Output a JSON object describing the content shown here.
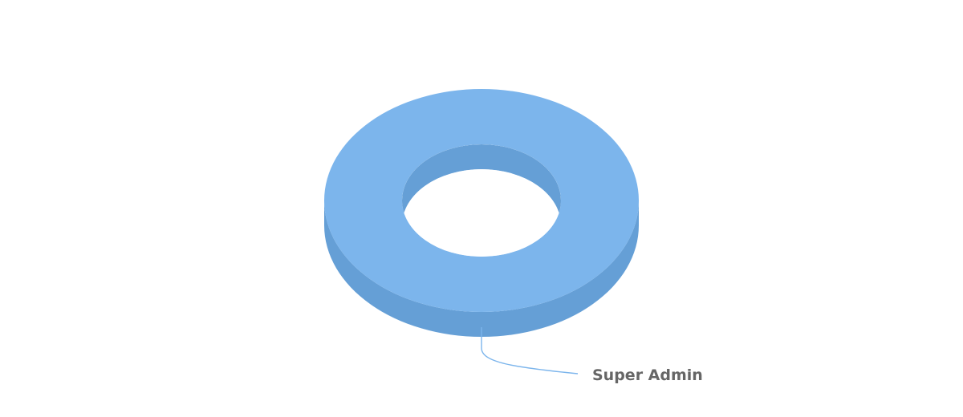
{
  "chart_data": {
    "type": "pie",
    "variant": "3d-donut",
    "title": "",
    "categories": [
      "Super Admin"
    ],
    "values": [
      1
    ],
    "colors": {
      "top": "#7cb5ec",
      "side": "#659fd6",
      "connector": "#7cb5ec",
      "label": "#666666"
    },
    "legend": "none"
  }
}
